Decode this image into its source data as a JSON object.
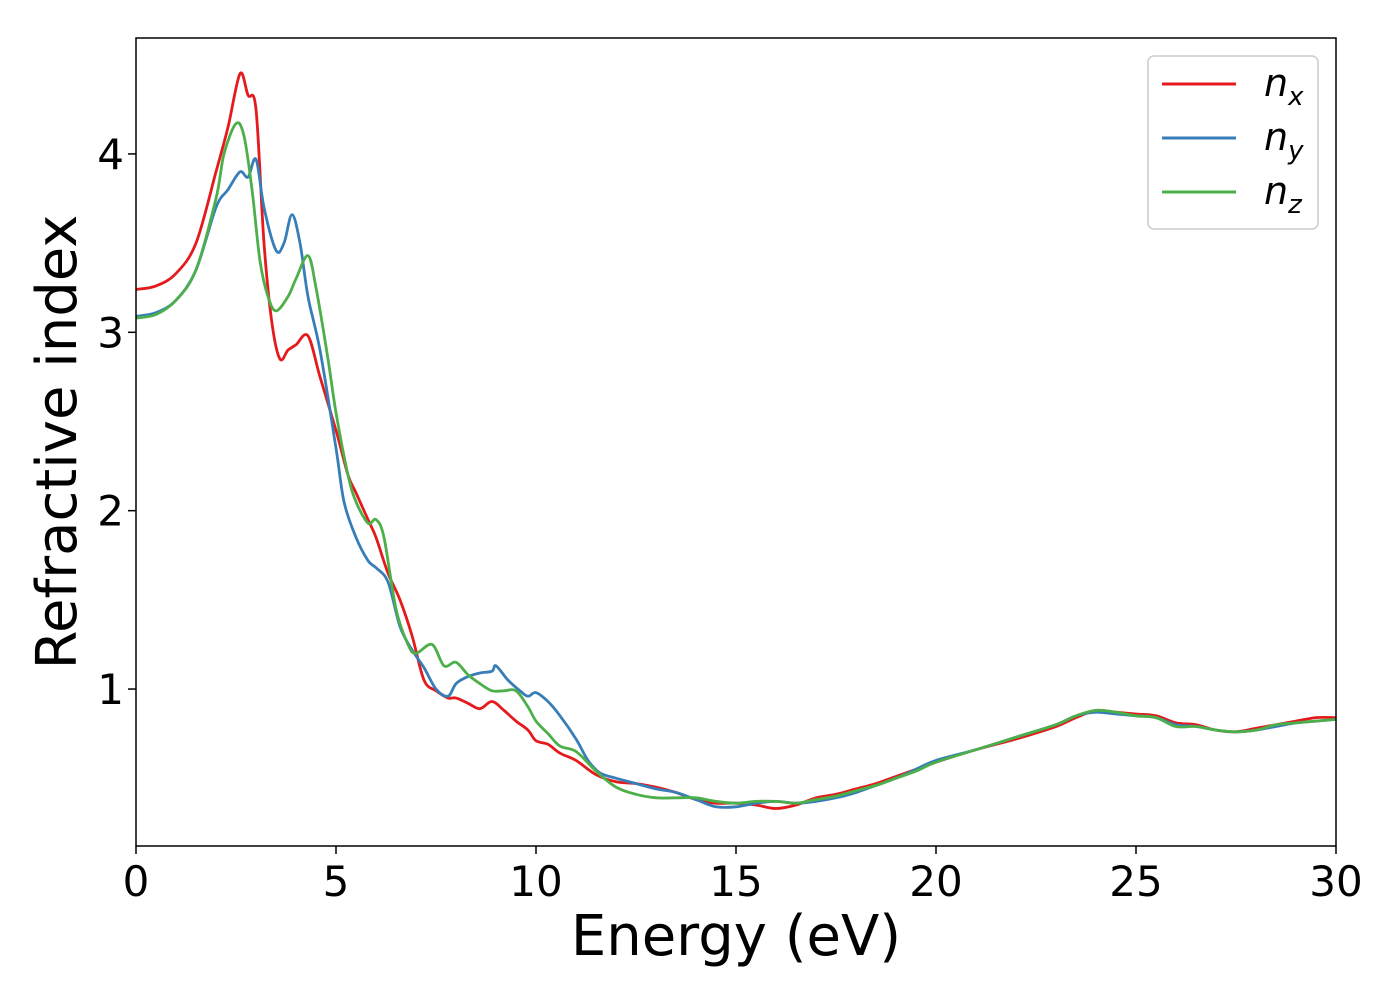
{
  "chart_data": {
    "type": "line",
    "title": "",
    "xlabel": "Energy (eV)",
    "ylabel": "Refractive index",
    "xlim": [
      0,
      30
    ],
    "ylim": [
      0.12,
      4.65
    ],
    "xticks": [
      0,
      5,
      10,
      15,
      20,
      25,
      30
    ],
    "yticks": [
      1,
      2,
      3,
      4
    ],
    "legend_position": "top-right",
    "grid": false,
    "series": [
      {
        "name": "n_x",
        "label_base": "n",
        "label_sub": "x",
        "color": "#e41a1c",
        "points": [
          [
            0,
            3.24
          ],
          [
            0.5,
            3.26
          ],
          [
            1.0,
            3.33
          ],
          [
            1.5,
            3.5
          ],
          [
            2.0,
            3.9
          ],
          [
            2.3,
            4.15
          ],
          [
            2.6,
            4.45
          ],
          [
            2.8,
            4.33
          ],
          [
            3.0,
            4.25
          ],
          [
            3.2,
            3.5
          ],
          [
            3.4,
            3.05
          ],
          [
            3.6,
            2.85
          ],
          [
            3.8,
            2.9
          ],
          [
            4.0,
            2.93
          ],
          [
            4.3,
            2.98
          ],
          [
            4.6,
            2.75
          ],
          [
            5.0,
            2.45
          ],
          [
            5.3,
            2.2
          ],
          [
            5.5,
            2.1
          ],
          [
            5.8,
            1.95
          ],
          [
            6.0,
            1.85
          ],
          [
            6.3,
            1.65
          ],
          [
            6.6,
            1.5
          ],
          [
            6.9,
            1.3
          ],
          [
            7.2,
            1.05
          ],
          [
            7.5,
            0.99
          ],
          [
            7.8,
            0.95
          ],
          [
            8.0,
            0.95
          ],
          [
            8.3,
            0.92
          ],
          [
            8.6,
            0.89
          ],
          [
            8.9,
            0.93
          ],
          [
            9.2,
            0.88
          ],
          [
            9.5,
            0.82
          ],
          [
            9.8,
            0.77
          ],
          [
            10.0,
            0.71
          ],
          [
            10.3,
            0.69
          ],
          [
            10.6,
            0.64
          ],
          [
            11.0,
            0.6
          ],
          [
            11.5,
            0.52
          ],
          [
            12.0,
            0.48
          ],
          [
            12.5,
            0.47
          ],
          [
            13.0,
            0.45
          ],
          [
            13.5,
            0.42
          ],
          [
            14.0,
            0.38
          ],
          [
            14.5,
            0.36
          ],
          [
            15.0,
            0.36
          ],
          [
            15.5,
            0.35
          ],
          [
            16.0,
            0.33
          ],
          [
            16.5,
            0.35
          ],
          [
            17.0,
            0.39
          ],
          [
            17.5,
            0.41
          ],
          [
            18.0,
            0.44
          ],
          [
            18.5,
            0.47
          ],
          [
            19.0,
            0.51
          ],
          [
            19.5,
            0.55
          ],
          [
            20.0,
            0.59
          ],
          [
            21.0,
            0.66
          ],
          [
            22.0,
            0.72
          ],
          [
            23.0,
            0.79
          ],
          [
            23.5,
            0.84
          ],
          [
            24.0,
            0.88
          ],
          [
            24.5,
            0.87
          ],
          [
            25.0,
            0.86
          ],
          [
            25.5,
            0.85
          ],
          [
            26.0,
            0.81
          ],
          [
            26.5,
            0.8
          ],
          [
            27.0,
            0.77
          ],
          [
            27.5,
            0.76
          ],
          [
            28.0,
            0.78
          ],
          [
            28.5,
            0.8
          ],
          [
            29.0,
            0.82
          ],
          [
            29.5,
            0.84
          ],
          [
            30.0,
            0.84
          ]
        ]
      },
      {
        "name": "n_y",
        "label_base": "n",
        "label_sub": "y",
        "color": "#377eb8",
        "points": [
          [
            0,
            3.09
          ],
          [
            0.5,
            3.11
          ],
          [
            1.0,
            3.18
          ],
          [
            1.5,
            3.35
          ],
          [
            2.0,
            3.7
          ],
          [
            2.3,
            3.8
          ],
          [
            2.6,
            3.9
          ],
          [
            2.8,
            3.87
          ],
          [
            3.0,
            3.97
          ],
          [
            3.2,
            3.7
          ],
          [
            3.5,
            3.46
          ],
          [
            3.7,
            3.5
          ],
          [
            3.9,
            3.66
          ],
          [
            4.1,
            3.5
          ],
          [
            4.3,
            3.2
          ],
          [
            4.6,
            2.9
          ],
          [
            5.0,
            2.35
          ],
          [
            5.2,
            2.05
          ],
          [
            5.5,
            1.85
          ],
          [
            5.8,
            1.72
          ],
          [
            6.0,
            1.68
          ],
          [
            6.3,
            1.6
          ],
          [
            6.6,
            1.35
          ],
          [
            6.9,
            1.22
          ],
          [
            7.2,
            1.12
          ],
          [
            7.5,
            1.0
          ],
          [
            7.8,
            0.96
          ],
          [
            8.0,
            1.03
          ],
          [
            8.3,
            1.07
          ],
          [
            8.6,
            1.09
          ],
          [
            8.9,
            1.1
          ],
          [
            9.0,
            1.13
          ],
          [
            9.3,
            1.05
          ],
          [
            9.6,
            0.99
          ],
          [
            9.8,
            0.96
          ],
          [
            10.0,
            0.98
          ],
          [
            10.3,
            0.93
          ],
          [
            10.6,
            0.85
          ],
          [
            11.0,
            0.72
          ],
          [
            11.3,
            0.6
          ],
          [
            11.6,
            0.53
          ],
          [
            12.0,
            0.5
          ],
          [
            12.5,
            0.47
          ],
          [
            13.0,
            0.44
          ],
          [
            13.5,
            0.42
          ],
          [
            14.0,
            0.38
          ],
          [
            14.5,
            0.34
          ],
          [
            15.0,
            0.34
          ],
          [
            15.5,
            0.36
          ],
          [
            16.0,
            0.37
          ],
          [
            16.5,
            0.36
          ],
          [
            17.0,
            0.37
          ],
          [
            17.5,
            0.39
          ],
          [
            18.0,
            0.42
          ],
          [
            18.5,
            0.46
          ],
          [
            19.0,
            0.5
          ],
          [
            19.5,
            0.55
          ],
          [
            20.0,
            0.6
          ],
          [
            21.0,
            0.66
          ],
          [
            22.0,
            0.73
          ],
          [
            23.0,
            0.8
          ],
          [
            23.5,
            0.85
          ],
          [
            24.0,
            0.87
          ],
          [
            24.5,
            0.86
          ],
          [
            25.0,
            0.85
          ],
          [
            25.5,
            0.84
          ],
          [
            26.0,
            0.8
          ],
          [
            26.5,
            0.79
          ],
          [
            27.0,
            0.77
          ],
          [
            27.5,
            0.76
          ],
          [
            28.0,
            0.77
          ],
          [
            28.5,
            0.79
          ],
          [
            29.0,
            0.81
          ],
          [
            29.5,
            0.82
          ],
          [
            30.0,
            0.83
          ]
        ]
      },
      {
        "name": "n_z",
        "label_base": "n",
        "label_sub": "z",
        "color": "#4daf4a",
        "points": [
          [
            0,
            3.08
          ],
          [
            0.5,
            3.1
          ],
          [
            1.0,
            3.18
          ],
          [
            1.5,
            3.35
          ],
          [
            2.0,
            3.75
          ],
          [
            2.2,
            4.0
          ],
          [
            2.5,
            4.17
          ],
          [
            2.7,
            4.1
          ],
          [
            2.9,
            3.8
          ],
          [
            3.1,
            3.4
          ],
          [
            3.3,
            3.2
          ],
          [
            3.5,
            3.12
          ],
          [
            3.8,
            3.2
          ],
          [
            4.0,
            3.3
          ],
          [
            4.3,
            3.43
          ],
          [
            4.5,
            3.25
          ],
          [
            4.8,
            2.85
          ],
          [
            5.0,
            2.55
          ],
          [
            5.3,
            2.2
          ],
          [
            5.5,
            2.05
          ],
          [
            5.8,
            1.93
          ],
          [
            6.0,
            1.95
          ],
          [
            6.2,
            1.85
          ],
          [
            6.5,
            1.45
          ],
          [
            6.8,
            1.25
          ],
          [
            7.0,
            1.2
          ],
          [
            7.4,
            1.25
          ],
          [
            7.7,
            1.13
          ],
          [
            8.0,
            1.15
          ],
          [
            8.3,
            1.08
          ],
          [
            8.6,
            1.03
          ],
          [
            8.9,
            0.99
          ],
          [
            9.2,
            0.99
          ],
          [
            9.5,
            0.99
          ],
          [
            9.8,
            0.9
          ],
          [
            10.0,
            0.82
          ],
          [
            10.3,
            0.75
          ],
          [
            10.6,
            0.68
          ],
          [
            11.0,
            0.65
          ],
          [
            11.5,
            0.54
          ],
          [
            12.0,
            0.45
          ],
          [
            12.5,
            0.41
          ],
          [
            13.0,
            0.39
          ],
          [
            13.5,
            0.39
          ],
          [
            14.0,
            0.39
          ],
          [
            14.5,
            0.37
          ],
          [
            15.0,
            0.36
          ],
          [
            15.5,
            0.37
          ],
          [
            16.0,
            0.37
          ],
          [
            16.5,
            0.36
          ],
          [
            17.0,
            0.38
          ],
          [
            17.5,
            0.4
          ],
          [
            18.0,
            0.43
          ],
          [
            18.5,
            0.46
          ],
          [
            19.0,
            0.5
          ],
          [
            19.5,
            0.54
          ],
          [
            20.0,
            0.59
          ],
          [
            21.0,
            0.66
          ],
          [
            22.0,
            0.73
          ],
          [
            23.0,
            0.8
          ],
          [
            23.5,
            0.85
          ],
          [
            24.0,
            0.88
          ],
          [
            24.5,
            0.87
          ],
          [
            25.0,
            0.85
          ],
          [
            25.5,
            0.84
          ],
          [
            26.0,
            0.79
          ],
          [
            26.5,
            0.79
          ],
          [
            27.0,
            0.77
          ],
          [
            27.5,
            0.76
          ],
          [
            28.0,
            0.77
          ],
          [
            28.5,
            0.8
          ],
          [
            29.0,
            0.81
          ],
          [
            29.5,
            0.82
          ],
          [
            30.0,
            0.83
          ]
        ]
      }
    ]
  }
}
